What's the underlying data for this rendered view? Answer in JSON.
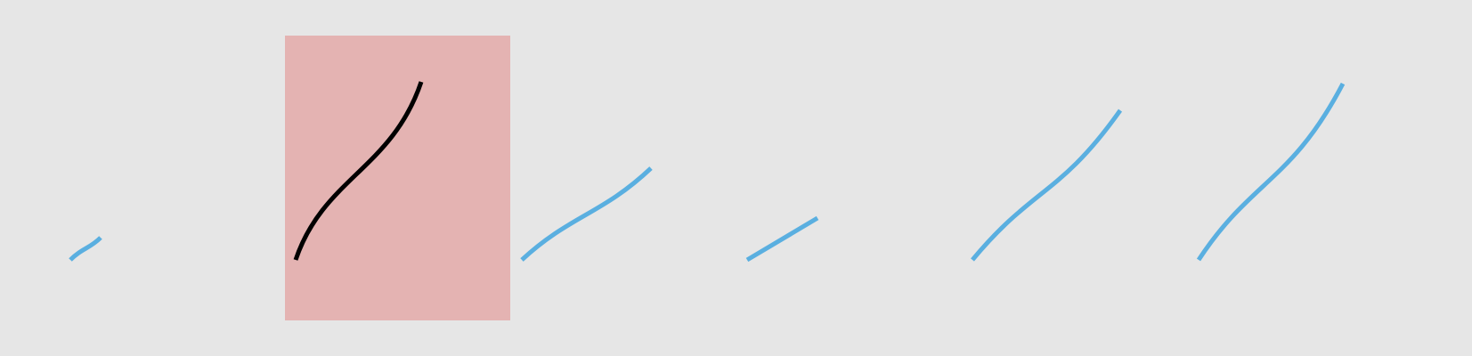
{
  "colors": {
    "background": "#e6e6e6",
    "highlight": "#e4b3b2",
    "selected_stroke": "#000000",
    "stroke": "#5aafe0"
  },
  "strokes": [
    {
      "name": "stroke-1",
      "selected": false
    },
    {
      "name": "stroke-2",
      "selected": true
    },
    {
      "name": "stroke-3",
      "selected": false
    },
    {
      "name": "stroke-4",
      "selected": false
    },
    {
      "name": "stroke-5",
      "selected": false
    },
    {
      "name": "stroke-6",
      "selected": false
    }
  ]
}
